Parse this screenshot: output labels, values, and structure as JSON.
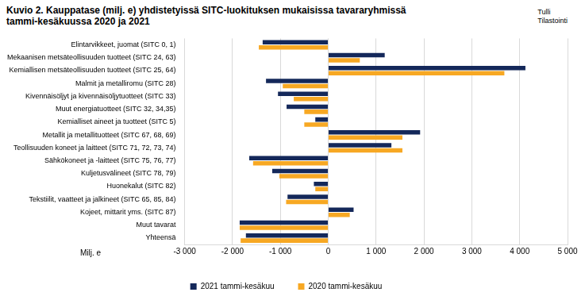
{
  "chart_data": {
    "type": "bar",
    "orientation": "horizontal",
    "title": [
      "Kuvio 2. Kauppatase (milj. e) yhdistetyissä SITC-luokituksen mukaisissa tavararyhmissä",
      "tammi-kesäkuussa 2020 ja 2021"
    ],
    "source": [
      "Tulli",
      "Tilastointi"
    ],
    "x_label": "Milj. e",
    "categories": [
      "Elintarvikkeet, juomat (SITC 0, 1)",
      "Mekaanisen metsäteollisuuden tuotteet (SITC 24, 63)",
      "Kemiallisen metsäteollisuuden tuotteet (SITC 25, 64)",
      "Malmit ja metalliromu (SITC 28)",
      "Kivennäisöljyt ja kivennäisöljytuotteet (SITC 33)",
      "Muut energiatuotteet (SITC 32, 34,35)",
      "Kemialliset aineet ja tuotteet (SITC 5)",
      "Metallit ja metallituotteet (SITC 67, 68, 69)",
      "Teollisuuden koneet ja laitteet (SITC 71, 72, 73, 74)",
      "Sähkökoneet ja -laitteet (SITC 75, 76, 77)",
      "Kuljetusvälineet (SITC 78, 79)",
      "Huonekalut (SITC 82)",
      "Tekstiilit, vaatteet ja jalkineet (SITC 65, 85, 84)",
      "Kojeet, mittarit yms. (SITC 87)",
      "Muut tavarat",
      "Yhteensä"
    ],
    "series": [
      {
        "name": "2021 tammi-kesäkuu",
        "color": "#14285a",
        "values": [
          -1370,
          1180,
          4120,
          -1300,
          -1050,
          -870,
          -270,
          1920,
          1320,
          -1650,
          -1170,
          -300,
          -850,
          530,
          -1850,
          -1720
        ]
      },
      {
        "name": "2020 tammi-kesäkuu",
        "color": "#f7a823",
        "values": [
          -1450,
          660,
          3680,
          -950,
          -720,
          -500,
          -500,
          1550,
          1550,
          -1570,
          -1020,
          -270,
          -880,
          450,
          -1850,
          -1830
        ]
      }
    ],
    "xlim": [
      -3000,
      5000
    ],
    "xticks": [
      {
        "value": -3000,
        "label": "-3 000"
      },
      {
        "value": -2000,
        "label": "-2 000"
      },
      {
        "value": -1000,
        "label": "-1 000"
      },
      0,
      {
        "value": 1000,
        "label": "1 000"
      },
      {
        "value": 2000,
        "label": "2 000"
      },
      {
        "value": 3000,
        "label": "3 000"
      },
      {
        "value": 4000,
        "label": "4 000"
      },
      {
        "value": 5000,
        "label": "5 000"
      }
    ],
    "grid": true,
    "legend": "bottom"
  }
}
